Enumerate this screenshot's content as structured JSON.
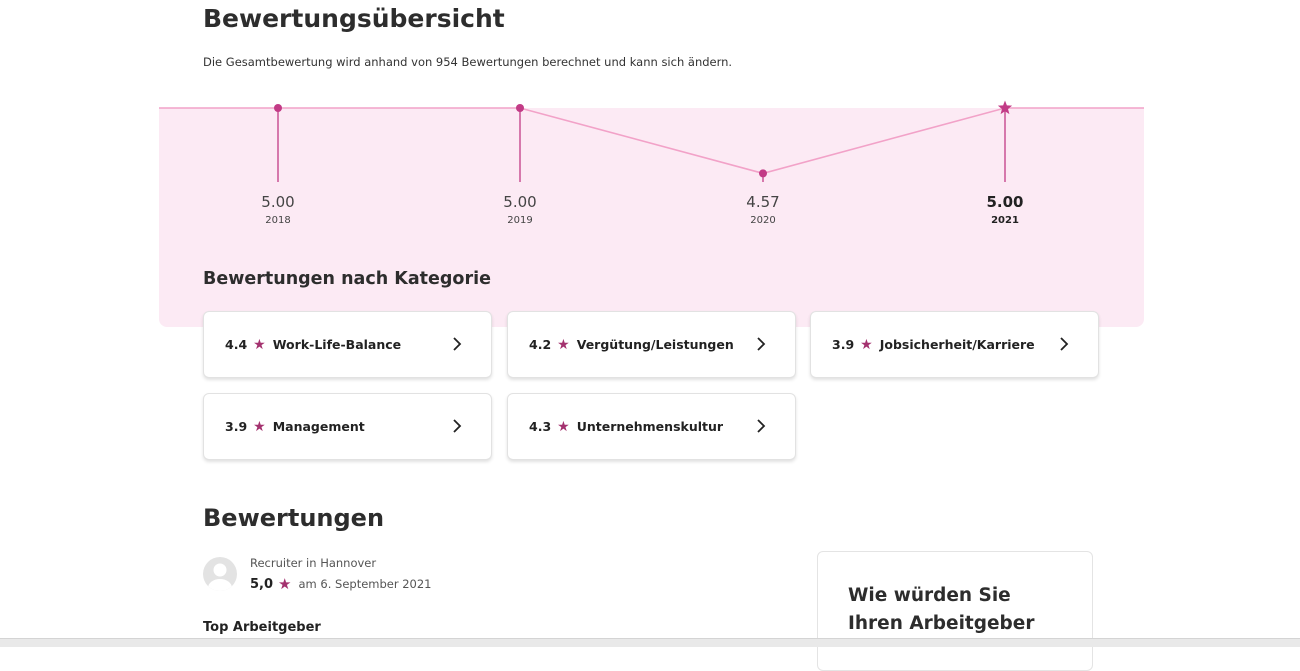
{
  "overview": {
    "title": "Bewertungsübersicht",
    "subtitle": "Die Gesamtbewertung wird anhand von 954 Bewertungen berechnet und kann sich ändern."
  },
  "trend": {
    "accent_color": "#c23b86",
    "line_color": "#f2a2c8",
    "band_color": "#fceaf4",
    "points": [
      {
        "year": "2018",
        "value": "5.00",
        "score": 5.0,
        "current": false
      },
      {
        "year": "2019",
        "value": "5.00",
        "score": 5.0,
        "current": false
      },
      {
        "year": "2020",
        "value": "4.57",
        "score": 4.57,
        "current": false
      },
      {
        "year": "2021",
        "value": "5.00",
        "score": 5.0,
        "current": true
      }
    ]
  },
  "categories": {
    "heading": "Bewertungen nach Kategorie",
    "items": [
      {
        "score": "4.4",
        "label": "Work-Life-Balance"
      },
      {
        "score": "4.2",
        "label": "Vergütung/Leistungen"
      },
      {
        "score": "3.9",
        "label": "Jobsicherheit/Karriere"
      },
      {
        "score": "3.9",
        "label": "Management"
      },
      {
        "score": "4.3",
        "label": "Unternehmenskultur"
      }
    ]
  },
  "reviews": {
    "heading": "Bewertungen",
    "first": {
      "role": "Recruiter in Hannover",
      "score": "5,0",
      "date": "am 6. September 2021",
      "title": "Top Arbeitgeber"
    }
  },
  "sidebar": {
    "prompt": "Wie würden Sie Ihren Arbeitgeber"
  },
  "icons": {
    "star": "star-icon",
    "chevron": "chevron-right-icon",
    "avatar": "user-avatar-icon"
  }
}
